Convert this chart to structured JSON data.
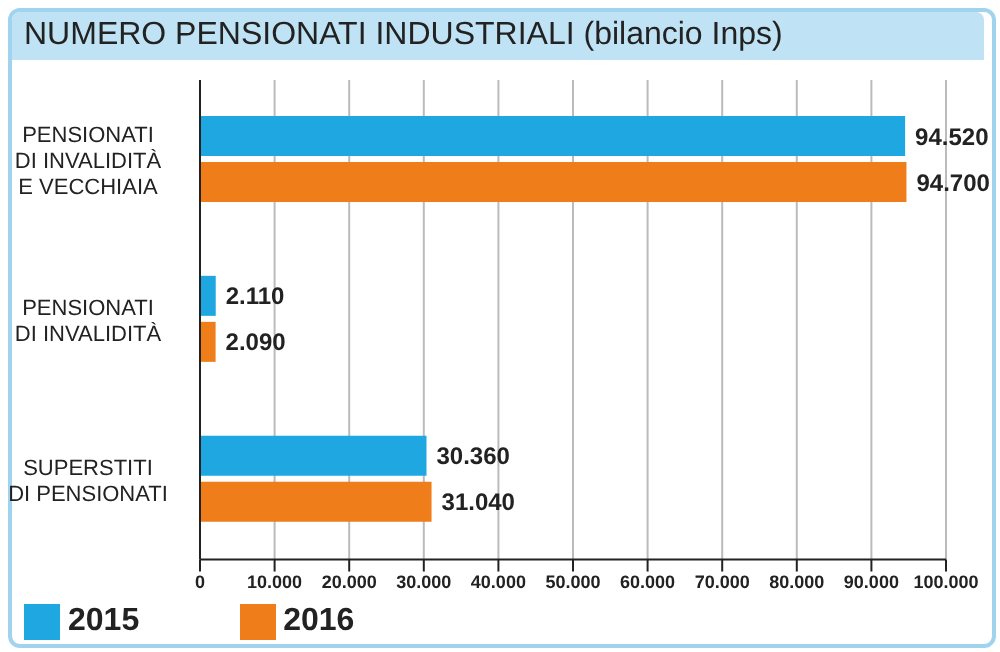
{
  "chart_data": {
    "type": "bar",
    "orientation": "horizontal",
    "title": "NUMERO PENSIONATI INDUSTRIALI (bilancio Inps)",
    "categories": [
      "PENSIONATI\nDI INVALIDITÀ\nE VECCHIAIA",
      "PENSIONATI\nDI INVALIDITÀ",
      "SUPERSTITI\nDI PENSIONATI"
    ],
    "series": [
      {
        "name": "2015",
        "color": "#1ea7e1",
        "values": [
          94520,
          2110,
          30360
        ],
        "value_labels": [
          "94.520",
          "2.110",
          "30.360"
        ]
      },
      {
        "name": "2016",
        "color": "#ef7d1a",
        "values": [
          94700,
          2090,
          31040
        ],
        "value_labels": [
          "94.700",
          "2.090",
          "31.040"
        ]
      }
    ],
    "xlim": [
      0,
      100000
    ],
    "xticks": [
      0,
      {
        "value": 10000,
        "label": "10.000"
      },
      {
        "value": 20000,
        "label": "20.000"
      },
      {
        "value": 30000,
        "label": "30.000"
      },
      {
        "value": 40000,
        "label": "40.000"
      },
      {
        "value": 50000,
        "label": "50.000"
      },
      {
        "value": 60000,
        "label": "60.000"
      },
      {
        "value": 70000,
        "label": "70.000"
      },
      {
        "value": 80000,
        "label": "80.000"
      },
      {
        "value": 90000,
        "label": "90.000"
      },
      {
        "value": 100000,
        "label": "100.000"
      }
    ],
    "grid": "x",
    "legend": "bottom left"
  }
}
